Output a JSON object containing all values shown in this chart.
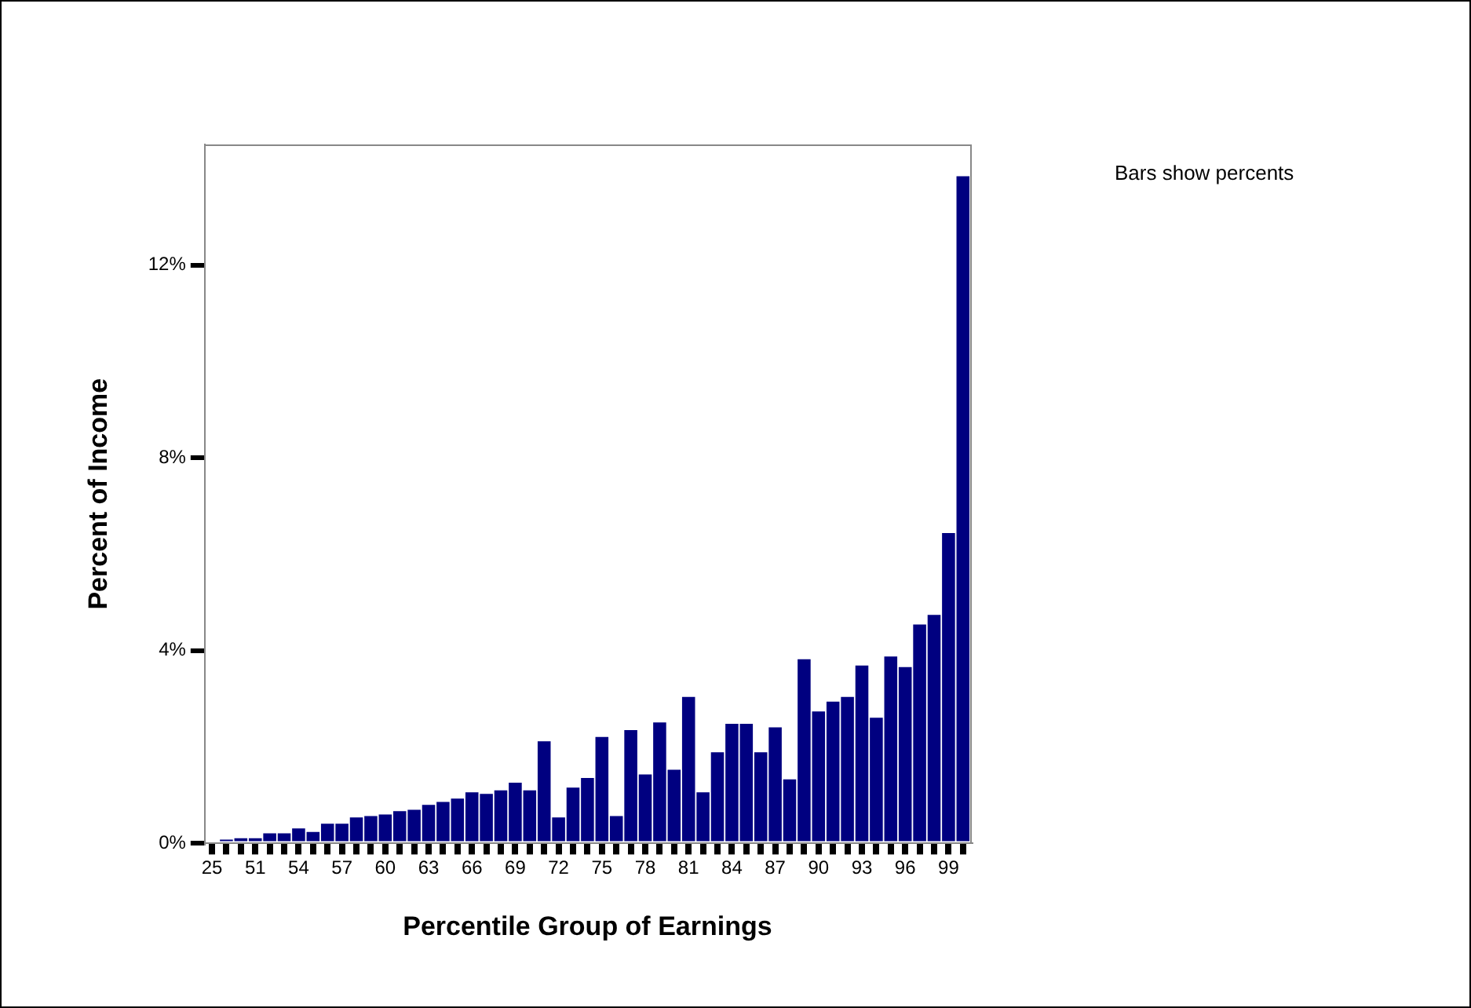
{
  "chart_data": {
    "type": "bar",
    "xlabel": "Percentile Group of Earnings",
    "ylabel": "Percent of Income",
    "annotations": [
      "Bars show percents"
    ],
    "categories": [
      "25",
      null,
      null,
      "51",
      null,
      null,
      "54",
      null,
      null,
      "57",
      null,
      null,
      "60",
      null,
      null,
      "63",
      null,
      null,
      "66",
      null,
      null,
      "69",
      null,
      null,
      "72",
      null,
      null,
      "75",
      null,
      null,
      "78",
      null,
      null,
      "81",
      null,
      null,
      "84",
      null,
      null,
      "87",
      null,
      null,
      "90",
      null,
      null,
      "93",
      null,
      null,
      "96",
      null,
      null,
      "99",
      null
    ],
    "values": [
      0,
      0.08,
      0.11,
      0.11,
      0.21,
      0.21,
      0.31,
      0.24,
      0.41,
      0.41,
      0.54,
      0.57,
      0.6,
      0.67,
      0.7,
      0.8,
      0.86,
      0.93,
      1.06,
      1.03,
      1.1,
      1.26,
      1.1,
      2.12,
      0.54,
      1.16,
      1.36,
      2.21,
      0.57,
      2.35,
      1.43,
      2.51,
      1.53,
      3.04,
      1.06,
      1.89,
      2.48,
      2.48,
      1.89,
      2.41,
      1.33,
      3.82,
      2.74,
      2.94,
      3.04,
      3.69,
      2.61,
      3.88,
      3.66,
      4.54,
      4.74,
      6.44,
      13.84
    ],
    "color": "#000080",
    "ylim": [
      0,
      14.5
    ],
    "yticks": [
      {
        "value": 0,
        "label": "0%"
      },
      {
        "value": 4,
        "label": "4%"
      },
      {
        "value": 8,
        "label": "8%"
      },
      {
        "value": 12,
        "label": "12%"
      }
    ]
  }
}
